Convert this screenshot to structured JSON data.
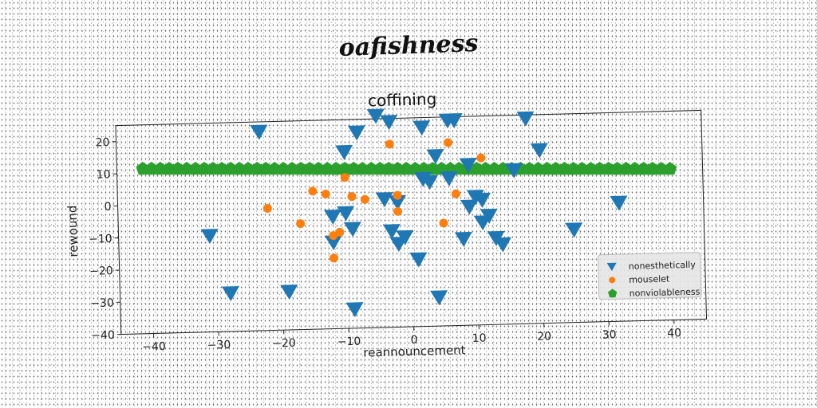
{
  "suptitle": "oafishness",
  "chart_data": {
    "type": "scatter",
    "title": "coffining",
    "xlabel": "reannouncement",
    "ylabel": "rewound",
    "xlim": [
      -45,
      45
    ],
    "ylim": [
      -40,
      25
    ],
    "xticks": [
      -40,
      -30,
      -20,
      -10,
      0,
      10,
      20,
      30,
      40
    ],
    "yticks": [
      -40,
      -30,
      -20,
      -10,
      0,
      10,
      20
    ],
    "grid": false,
    "legend_position": "lower-right",
    "series": [
      {
        "name": "nonesthetically",
        "marker": "triangle-down",
        "color": "#1f77b4",
        "x": [
          -23,
          -8,
          -5,
          -3,
          2,
          6,
          7,
          18,
          -10,
          20,
          4,
          9,
          2,
          3,
          6,
          -4,
          -2,
          10,
          11,
          9,
          -10,
          -12,
          -9,
          -3,
          -1,
          -2,
          1,
          12,
          11,
          14,
          25,
          32,
          -31,
          -12,
          -28,
          -19,
          -9,
          4,
          8,
          13,
          16
        ],
        "y": [
          22,
          21,
          26,
          24,
          22,
          24,
          24,
          24,
          15,
          14,
          13,
          10,
          6,
          5,
          6,
          0,
          -1,
          0,
          -1,
          -3,
          -4,
          -5,
          -9,
          -10,
          -12,
          -14,
          -19,
          -6,
          -8,
          -15,
          -11,
          -3,
          -10,
          -13,
          -28,
          -28,
          -34,
          -31,
          -13,
          -13,
          8
        ]
      },
      {
        "name": "mouselet",
        "marker": "circle",
        "color": "#ff7f0e",
        "x": [
          -3,
          6,
          11,
          -15,
          -13,
          -10,
          -9,
          -7,
          -2,
          -2,
          7,
          5,
          -22,
          -17,
          -12,
          -11,
          -12
        ],
        "y": [
          17,
          17,
          12,
          3,
          2,
          7,
          1,
          0,
          1,
          -4,
          1,
          -8,
          -2,
          -7,
          -11,
          -10,
          -18
        ]
      },
      {
        "name": "nonviolableness",
        "marker": "pentagon",
        "color": "#2ca02c",
        "x_start": -41,
        "x_end": 40,
        "count": 61,
        "y_start": 11.3,
        "y_end": 7.0
      }
    ]
  }
}
